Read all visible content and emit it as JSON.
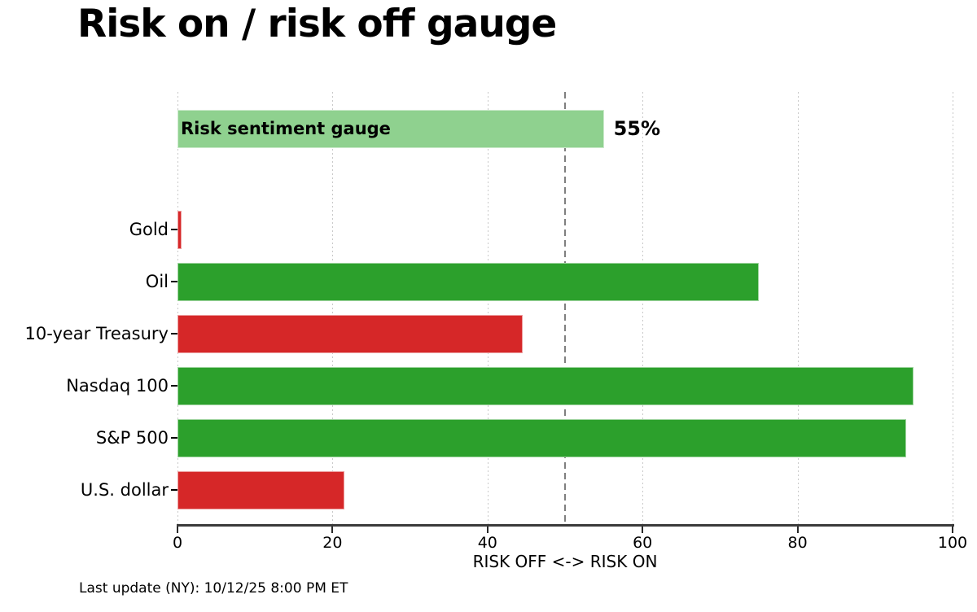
{
  "title": "Risk on / risk off gauge",
  "footer": "Last update (NY): 10/12/25 8:00 PM ET",
  "chart_data": {
    "type": "bar",
    "orientation": "horizontal",
    "title": "Risk on / risk off gauge",
    "xlabel": "RISK OFF <-> RISK ON",
    "xlim": [
      0,
      100
    ],
    "xticks": [
      0,
      20,
      40,
      60,
      80,
      100
    ],
    "threshold_line": 50,
    "grid": "vertical-dotted",
    "legend": "none",
    "gauge": {
      "label": "Risk sentiment gauge",
      "value": 55,
      "value_label": "55%"
    },
    "categories": [
      "Gold",
      "Oil",
      "10-year Treasury",
      "Nasdaq 100",
      "S&P 500",
      "U.S. dollar"
    ],
    "values": [
      0.5,
      75,
      44.5,
      95,
      94,
      21.5
    ],
    "bar_colors": [
      "red",
      "green",
      "red",
      "green",
      "green",
      "red"
    ]
  },
  "colors": {
    "green": "#2ca02c",
    "red": "#d62728",
    "light_green": "#8fd18f",
    "threshold": "#7f7f7f",
    "gridline": "#c9c9c9",
    "axis": "#3a3a3a",
    "text": "#000000"
  }
}
